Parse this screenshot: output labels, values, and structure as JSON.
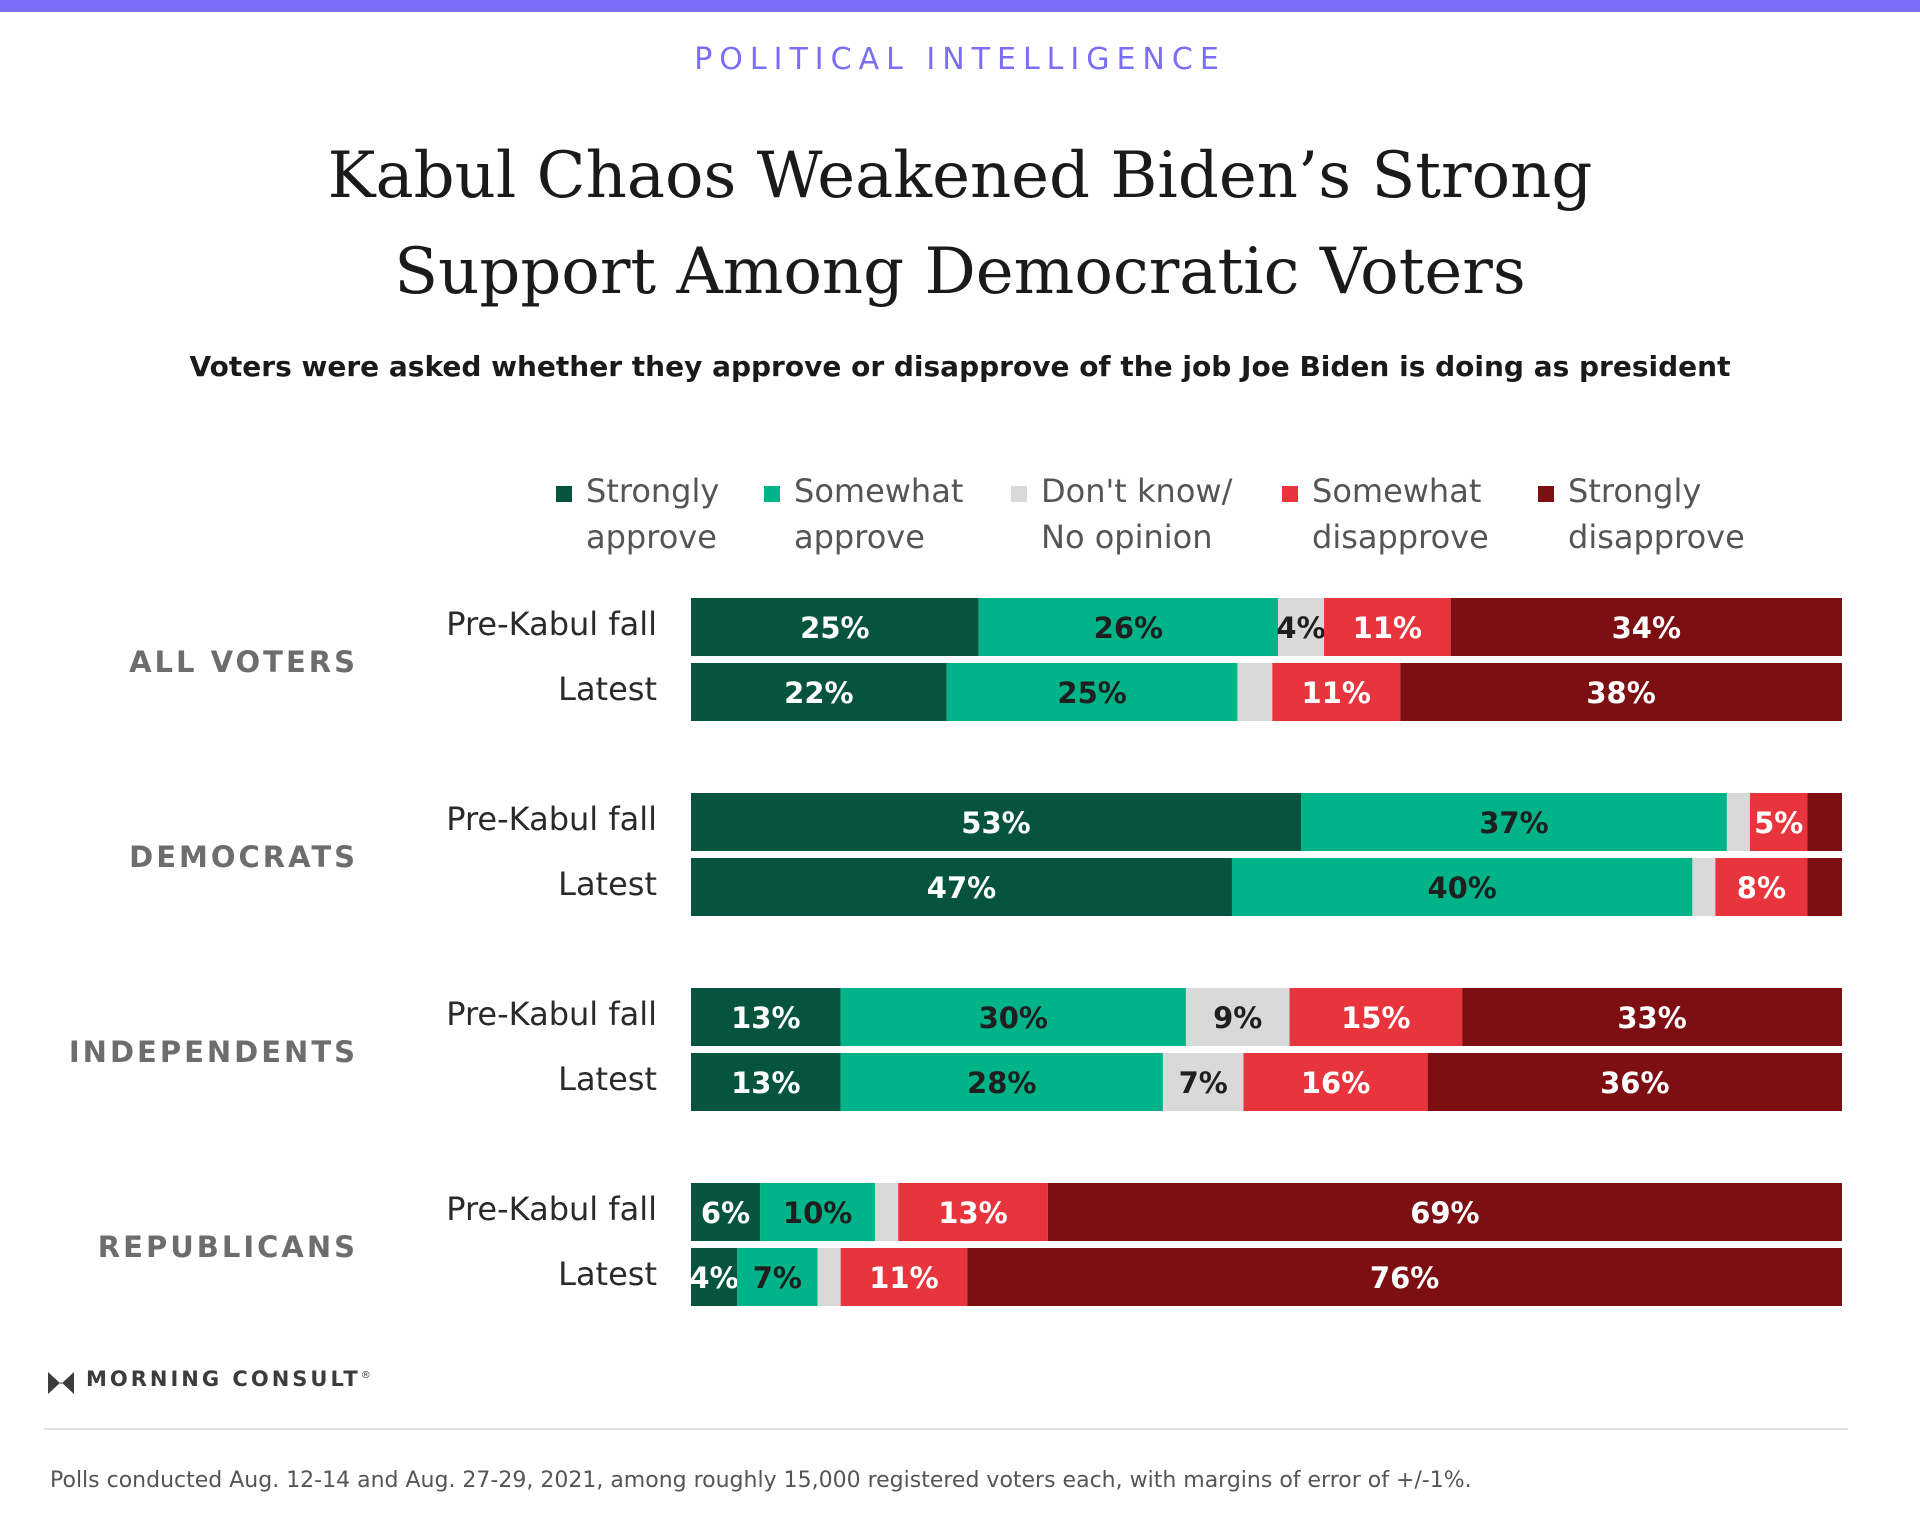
{
  "kicker": "POLITICAL INTELLIGENCE",
  "brand": "MORNING CONSULT",
  "brand_mark": "®",
  "footnote": "Polls conducted Aug. 12-14 and Aug. 27-29, 2021, among roughly 15,000 registered voters each, with margins of error of +/-1%.",
  "chart_data": {
    "type": "bar",
    "orientation": "horizontal",
    "stacked": true,
    "title": "Kabul Chaos Weakened Biden’s Strong Support Among Democratic Voters",
    "subtitle": "Voters were asked whether they approve or disapprove of the job Joe Biden is doing as president",
    "xlim": [
      0,
      100
    ],
    "legend_position": "top",
    "categories": [
      {
        "name": "Strongly approve",
        "lines": [
          "Strongly",
          "approve"
        ],
        "color": "#06543d",
        "label_color": "#ffffff"
      },
      {
        "name": "Somewhat approve",
        "lines": [
          "Somewhat",
          "approve"
        ],
        "color": "#00b388",
        "label_color": "#1f1f1f"
      },
      {
        "name": "Don't know/ No opinion",
        "lines": [
          "Don't know/",
          "No opinion"
        ],
        "color": "#d9d9d9",
        "label_color": "#1f1f1f"
      },
      {
        "name": "Somewhat disapprove",
        "lines": [
          "Somewhat",
          "disapprove"
        ],
        "color": "#e8343c",
        "label_color": "#ffffff"
      },
      {
        "name": "Strongly disapprove",
        "lines": [
          "Strongly",
          "disapprove"
        ],
        "color": "#7d0e12",
        "label_color": "#ffffff"
      }
    ],
    "groups": [
      {
        "name": "ALL VOTERS",
        "rows": [
          {
            "label": "Pre-Kabul fall",
            "values": [
              25,
              26,
              4,
              11,
              34
            ],
            "labels": [
              "25%",
              "26%",
              "4%",
              "11%",
              "34%"
            ]
          },
          {
            "label": "Latest",
            "values": [
              22,
              25,
              3,
              11,
              38
            ],
            "labels": [
              "22%",
              "25%",
              "",
              "11%",
              "38%"
            ]
          }
        ]
      },
      {
        "name": "DEMOCRATS",
        "rows": [
          {
            "label": "Pre-Kabul fall",
            "values": [
              53,
              37,
              2,
              5,
              3
            ],
            "labels": [
              "53%",
              "37%",
              "",
              "5%",
              ""
            ]
          },
          {
            "label": "Latest",
            "values": [
              47,
              40,
              2,
              8,
              3
            ],
            "labels": [
              "47%",
              "40%",
              "",
              "8%",
              ""
            ]
          }
        ]
      },
      {
        "name": "INDEPENDENTS",
        "rows": [
          {
            "label": "Pre-Kabul fall",
            "values": [
              13,
              30,
              9,
              15,
              33
            ],
            "labels": [
              "13%",
              "30%",
              "9%",
              "15%",
              "33%"
            ]
          },
          {
            "label": "Latest",
            "values": [
              13,
              28,
              7,
              16,
              36
            ],
            "labels": [
              "13%",
              "28%",
              "7%",
              "16%",
              "36%"
            ]
          }
        ]
      },
      {
        "name": "REPUBLICANS",
        "rows": [
          {
            "label": "Pre-Kabul fall",
            "values": [
              6,
              10,
              2,
              13,
              69
            ],
            "labels": [
              "6%",
              "10%",
              "",
              "13%",
              "69%"
            ]
          },
          {
            "label": "Latest",
            "values": [
              4,
              7,
              2,
              11,
              76
            ],
            "labels": [
              "4%",
              "7%",
              "",
              "11%",
              "76%"
            ]
          }
        ]
      }
    ]
  }
}
